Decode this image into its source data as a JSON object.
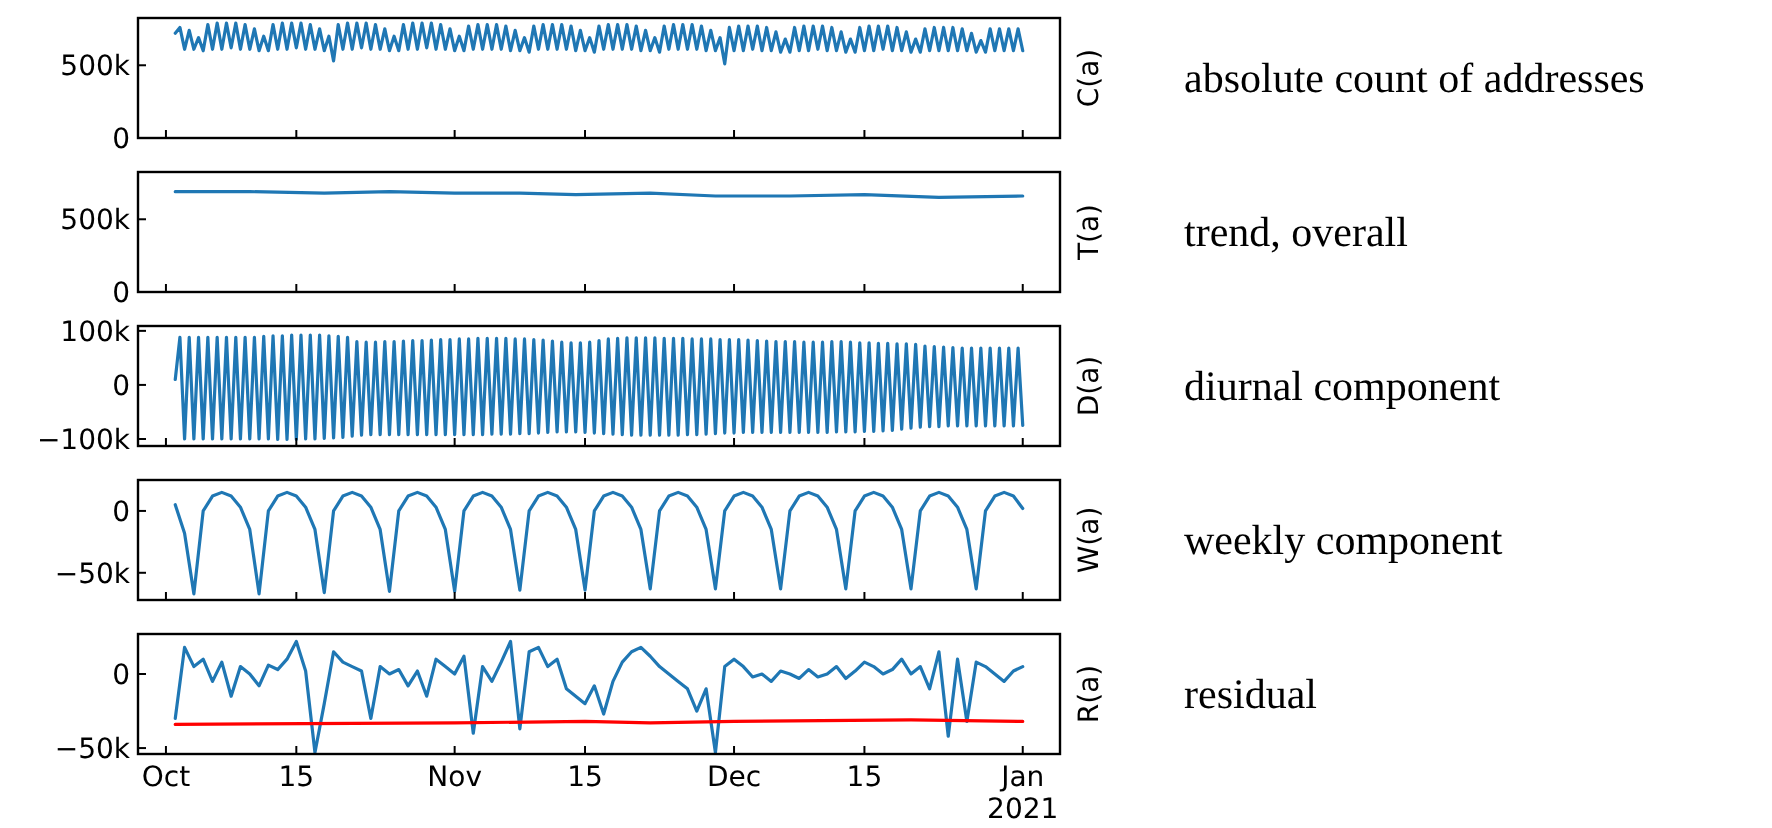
{
  "chart_data": [
    {
      "type": "line",
      "ylabel": "C(a)",
      "annotations": [
        "absolute count of addresses"
      ],
      "xlim": [
        "2020-09-28",
        "2021-01-05"
      ],
      "ylim": [
        0,
        825000
      ],
      "yticks": [
        {
          "value": 0,
          "label": "0"
        },
        {
          "value": 500000,
          "label": "500k"
        }
      ],
      "xticks": [
        {
          "value": "2020-10-01",
          "label": null
        },
        {
          "value": "2020-10-15",
          "label": null
        },
        {
          "value": "2020-11-01",
          "label": null
        },
        {
          "value": "2020-11-15",
          "label": null
        },
        {
          "value": "2020-12-01",
          "label": null
        },
        {
          "value": "2020-12-15",
          "label": null
        },
        {
          "value": "2021-01-01",
          "label": null
        }
      ],
      "tick_labels": "y",
      "x": [
        "2020-10-02T00:00",
        "2020-10-02T12:00",
        "2020-10-03T00:00",
        "2020-10-03T12:00",
        "2020-10-04T00:00",
        "2020-10-04T12:00",
        "2020-10-05T00:00",
        "2020-10-05T12:00",
        "2020-10-06T00:00",
        "2020-10-06T12:00",
        "2020-10-07T00:00",
        "2020-10-07T12:00",
        "2020-10-08T00:00",
        "2020-10-08T12:00",
        "2020-10-09T00:00",
        "2020-10-09T12:00",
        "2020-10-10T00:00",
        "2020-10-10T12:00",
        "2020-10-11T00:00",
        "2020-10-11T12:00",
        "2020-10-12T00:00",
        "2020-10-12T12:00",
        "2020-10-13T00:00",
        "2020-10-13T12:00",
        "2020-10-14T00:00",
        "2020-10-14T12:00",
        "2020-10-15T00:00",
        "2020-10-15T12:00",
        "2020-10-16T00:00",
        "2020-10-16T12:00",
        "2020-10-17T00:00",
        "2020-10-17T12:00",
        "2020-10-18T00:00",
        "2020-10-18T12:00",
        "2020-10-19T00:00",
        "2020-10-19T12:00",
        "2020-10-20T00:00",
        "2020-10-20T12:00",
        "2020-10-21T00:00",
        "2020-10-21T12:00",
        "2020-10-22T00:00",
        "2020-10-22T12:00",
        "2020-10-23T00:00",
        "2020-10-23T12:00",
        "2020-10-24T00:00",
        "2020-10-24T12:00",
        "2020-10-25T00:00",
        "2020-10-25T12:00",
        "2020-10-26T00:00",
        "2020-10-26T12:00",
        "2020-10-27T00:00",
        "2020-10-27T12:00",
        "2020-10-28T00:00",
        "2020-10-28T12:00",
        "2020-10-29T00:00",
        "2020-10-29T12:00",
        "2020-10-30T00:00",
        "2020-10-30T12:00",
        "2020-10-31T00:00",
        "2020-10-31T12:00",
        "2020-11-01T00:00",
        "2020-11-01T12:00",
        "2020-11-02T00:00",
        "2020-11-02T12:00",
        "2020-11-03T00:00",
        "2020-11-03T12:00",
        "2020-11-04T00:00",
        "2020-11-04T12:00",
        "2020-11-05T00:00",
        "2020-11-05T12:00",
        "2020-11-06T00:00",
        "2020-11-06T12:00",
        "2020-11-07T00:00",
        "2020-11-07T12:00",
        "2020-11-08T00:00",
        "2020-11-08T12:00",
        "2020-11-09T00:00",
        "2020-11-09T12:00",
        "2020-11-10T00:00",
        "2020-11-10T12:00",
        "2020-11-11T00:00",
        "2020-11-11T12:00",
        "2020-11-12T00:00",
        "2020-11-12T12:00",
        "2020-11-13T00:00",
        "2020-11-13T12:00",
        "2020-11-14T00:00",
        "2020-11-14T12:00",
        "2020-11-15T00:00",
        "2020-11-15T12:00",
        "2020-11-16T00:00",
        "2020-11-16T12:00",
        "2020-11-17T00:00",
        "2020-11-17T12:00",
        "2020-11-18T00:00",
        "2020-11-18T12:00",
        "2020-11-19T00:00",
        "2020-11-19T12:00",
        "2020-11-20T00:00",
        "2020-11-20T12:00",
        "2020-11-21T00:00",
        "2020-11-21T12:00",
        "2020-11-22T00:00",
        "2020-11-22T12:00",
        "2020-11-23T00:00",
        "2020-11-23T12:00",
        "2020-11-24T00:00",
        "2020-11-24T12:00",
        "2020-11-25T00:00",
        "2020-11-25T12:00",
        "2020-11-26T00:00",
        "2020-11-26T12:00",
        "2020-11-27T00:00",
        "2020-11-27T12:00",
        "2020-11-28T00:00",
        "2020-11-28T12:00",
        "2020-11-29T00:00",
        "2020-11-29T12:00",
        "2020-11-30T00:00",
        "2020-11-30T12:00",
        "2020-12-01T00:00",
        "2020-12-01T12:00",
        "2020-12-02T00:00",
        "2020-12-02T12:00",
        "2020-12-03T00:00",
        "2020-12-03T12:00",
        "2020-12-04T00:00",
        "2020-12-04T12:00",
        "2020-12-05T00:00",
        "2020-12-05T12:00",
        "2020-12-06T00:00",
        "2020-12-06T12:00",
        "2020-12-07T00:00",
        "2020-12-07T12:00",
        "2020-12-08T00:00",
        "2020-12-08T12:00",
        "2020-12-09T00:00",
        "2020-12-09T12:00",
        "2020-12-10T00:00",
        "2020-12-10T12:00",
        "2020-12-11T00:00",
        "2020-12-11T12:00",
        "2020-12-12T00:00",
        "2020-12-12T12:00",
        "2020-12-13T00:00",
        "2020-12-13T12:00",
        "2020-12-14T00:00",
        "2020-12-14T12:00",
        "2020-12-15T00:00",
        "2020-12-15T12:00",
        "2020-12-16T00:00",
        "2020-12-16T12:00",
        "2020-12-17T00:00",
        "2020-12-17T12:00",
        "2020-12-18T00:00",
        "2020-12-18T12:00",
        "2020-12-19T00:00",
        "2020-12-19T12:00",
        "2020-12-20T00:00",
        "2020-12-20T12:00",
        "2020-12-21T00:00",
        "2020-12-21T12:00",
        "2020-12-22T00:00",
        "2020-12-22T12:00",
        "2020-12-23T00:00",
        "2020-12-23T12:00",
        "2020-12-24T00:00",
        "2020-12-24T12:00",
        "2020-12-25T00:00",
        "2020-12-25T12:00",
        "2020-12-26T00:00",
        "2020-12-26T12:00",
        "2020-12-27T00:00",
        "2020-12-27T12:00",
        "2020-12-28T00:00",
        "2020-12-28T12:00",
        "2020-12-29T00:00",
        "2020-12-29T12:00",
        "2020-12-30T00:00",
        "2020-12-30T12:00",
        "2020-12-31T00:00",
        "2020-12-31T12:00",
        "2021-01-01T00:00"
      ],
      "series": [
        {
          "color": "#1f77b4",
          "values": [
            720000,
            760000,
            610000,
            740000,
            610000,
            690000,
            600000,
            780000,
            610000,
            790000,
            610000,
            790000,
            620000,
            790000,
            610000,
            780000,
            610000,
            750000,
            600000,
            700000,
            600000,
            780000,
            610000,
            790000,
            610000,
            790000,
            620000,
            790000,
            610000,
            780000,
            610000,
            750000,
            600000,
            700000,
            530000,
            780000,
            610000,
            790000,
            610000,
            790000,
            620000,
            790000,
            610000,
            780000,
            610000,
            750000,
            600000,
            700000,
            600000,
            780000,
            610000,
            790000,
            610000,
            790000,
            620000,
            790000,
            610000,
            780000,
            610000,
            750000,
            600000,
            700000,
            600000,
            770000,
            610000,
            780000,
            610000,
            780000,
            610000,
            780000,
            610000,
            770000,
            600000,
            740000,
            600000,
            690000,
            590000,
            770000,
            610000,
            780000,
            610000,
            780000,
            610000,
            780000,
            610000,
            770000,
            600000,
            740000,
            600000,
            690000,
            590000,
            770000,
            610000,
            780000,
            610000,
            780000,
            610000,
            780000,
            610000,
            770000,
            600000,
            740000,
            600000,
            690000,
            590000,
            770000,
            610000,
            780000,
            610000,
            780000,
            610000,
            780000,
            610000,
            770000,
            600000,
            740000,
            600000,
            690000,
            510000,
            760000,
            600000,
            770000,
            600000,
            770000,
            610000,
            770000,
            600000,
            760000,
            600000,
            730000,
            590000,
            680000,
            590000,
            760000,
            600000,
            770000,
            600000,
            770000,
            610000,
            770000,
            600000,
            760000,
            600000,
            730000,
            590000,
            680000,
            590000,
            760000,
            600000,
            770000,
            600000,
            770000,
            610000,
            770000,
            600000,
            760000,
            600000,
            730000,
            590000,
            680000,
            590000,
            750000,
            600000,
            760000,
            600000,
            760000,
            600000,
            760000,
            600000,
            750000,
            600000,
            720000,
            590000,
            670000,
            590000,
            750000,
            600000,
            750000,
            600000,
            750000,
            600000,
            750000,
            600000
          ]
        }
      ]
    },
    {
      "type": "line",
      "ylabel": "T(a)",
      "annotations": [
        "trend, overall"
      ],
      "xlim": [
        "2020-09-28",
        "2021-01-05"
      ],
      "ylim": [
        0,
        825000
      ],
      "yticks": [
        {
          "value": 0,
          "label": "0"
        },
        {
          "value": 500000,
          "label": "500k"
        }
      ],
      "xticks": [
        {
          "value": "2020-10-01",
          "label": null
        },
        {
          "value": "2020-10-15",
          "label": null
        },
        {
          "value": "2020-11-01",
          "label": null
        },
        {
          "value": "2020-11-15",
          "label": null
        },
        {
          "value": "2020-12-01",
          "label": null
        },
        {
          "value": "2020-12-15",
          "label": null
        },
        {
          "value": "2021-01-01",
          "label": null
        }
      ],
      "tick_labels": "y",
      "x": [
        "2020-10-02",
        "2020-10-10",
        "2020-10-18",
        "2020-10-25",
        "2020-11-01",
        "2020-11-08",
        "2020-11-14",
        "2020-11-22",
        "2020-11-29",
        "2020-12-07",
        "2020-12-15",
        "2020-12-23",
        "2021-01-01"
      ],
      "series": [
        {
          "color": "#1f77b4",
          "values": [
            690000,
            690000,
            680000,
            690000,
            680000,
            680000,
            670000,
            680000,
            660000,
            660000,
            670000,
            650000,
            660000
          ]
        }
      ]
    },
    {
      "type": "line",
      "ylabel": "D(a)",
      "annotations": [
        "diurnal component"
      ],
      "xlim": [
        "2020-09-28",
        "2021-01-05"
      ],
      "ylim": [
        -113000,
        109000
      ],
      "yticks": [
        {
          "value": -100000,
          "label": "−100k"
        },
        {
          "value": 0,
          "label": "0"
        },
        {
          "value": 100000,
          "label": "100k"
        }
      ],
      "xticks": [
        {
          "value": "2020-10-01",
          "label": null
        },
        {
          "value": "2020-10-15",
          "label": null
        },
        {
          "value": "2020-11-01",
          "label": null
        },
        {
          "value": "2020-11-15",
          "label": null
        },
        {
          "value": "2020-12-01",
          "label": null
        },
        {
          "value": "2020-12-15",
          "label": null
        },
        {
          "value": "2021-01-01",
          "label": null
        }
      ],
      "tick_labels": "y",
      "x": [
        "2020-10-02T00:00",
        "2020-10-02T12:00",
        "2020-10-03T00:00",
        "2020-10-03T12:00",
        "2020-10-04T00:00",
        "2020-10-04T12:00",
        "2020-10-05T00:00",
        "2020-10-05T12:00",
        "2020-10-06T00:00",
        "2020-10-06T12:00",
        "2020-10-07T00:00",
        "2020-10-07T12:00",
        "2020-10-08T00:00",
        "2020-10-08T12:00",
        "2020-10-09T00:00",
        "2020-10-09T12:00",
        "2020-10-10T00:00",
        "2020-10-10T12:00",
        "2020-10-11T00:00",
        "2020-10-11T12:00",
        "2020-10-12T00:00",
        "2020-10-12T12:00",
        "2020-10-13T00:00",
        "2020-10-13T12:00",
        "2020-10-14T00:00",
        "2020-10-14T12:00",
        "2020-10-15T00:00",
        "2020-10-15T12:00",
        "2020-10-16T00:00",
        "2020-10-16T12:00",
        "2020-10-17T00:00",
        "2020-10-17T12:00",
        "2020-10-18T00:00",
        "2020-10-18T12:00",
        "2020-10-19T00:00",
        "2020-10-19T12:00",
        "2020-10-20T00:00",
        "2020-10-20T12:00",
        "2020-10-21T00:00",
        "2020-10-21T12:00",
        "2020-10-22T00:00",
        "2020-10-22T12:00",
        "2020-10-23T00:00",
        "2020-10-23T12:00",
        "2020-10-24T00:00",
        "2020-10-24T12:00",
        "2020-10-25T00:00",
        "2020-10-25T12:00",
        "2020-10-26T00:00",
        "2020-10-26T12:00",
        "2020-10-27T00:00",
        "2020-10-27T12:00",
        "2020-10-28T00:00",
        "2020-10-28T12:00",
        "2020-10-29T00:00",
        "2020-10-29T12:00",
        "2020-10-30T00:00",
        "2020-10-30T12:00",
        "2020-10-31T00:00",
        "2020-10-31T12:00",
        "2020-11-01T00:00",
        "2020-11-01T12:00",
        "2020-11-02T00:00",
        "2020-11-02T12:00",
        "2020-11-03T00:00",
        "2020-11-03T12:00",
        "2020-11-04T00:00",
        "2020-11-04T12:00",
        "2020-11-05T00:00",
        "2020-11-05T12:00",
        "2020-11-06T00:00",
        "2020-11-06T12:00",
        "2020-11-07T00:00",
        "2020-11-07T12:00",
        "2020-11-08T00:00",
        "2020-11-08T12:00",
        "2020-11-09T00:00",
        "2020-11-09T12:00",
        "2020-11-10T00:00",
        "2020-11-10T12:00",
        "2020-11-11T00:00",
        "2020-11-11T12:00",
        "2020-11-12T00:00",
        "2020-11-12T12:00",
        "2020-11-13T00:00",
        "2020-11-13T12:00",
        "2020-11-14T00:00",
        "2020-11-14T12:00",
        "2020-11-15T00:00",
        "2020-11-15T12:00",
        "2020-11-16T00:00",
        "2020-11-16T12:00",
        "2020-11-17T00:00",
        "2020-11-17T12:00",
        "2020-11-18T00:00",
        "2020-11-18T12:00",
        "2020-11-19T00:00",
        "2020-11-19T12:00",
        "2020-11-20T00:00",
        "2020-11-20T12:00",
        "2020-11-21T00:00",
        "2020-11-21T12:00",
        "2020-11-22T00:00",
        "2020-11-22T12:00",
        "2020-11-23T00:00",
        "2020-11-23T12:00",
        "2020-11-24T00:00",
        "2020-11-24T12:00",
        "2020-11-25T00:00",
        "2020-11-25T12:00",
        "2020-11-26T00:00",
        "2020-11-26T12:00",
        "2020-11-27T00:00",
        "2020-11-27T12:00",
        "2020-11-28T00:00",
        "2020-11-28T12:00",
        "2020-11-29T00:00",
        "2020-11-29T12:00",
        "2020-11-30T00:00",
        "2020-11-30T12:00",
        "2020-12-01T00:00",
        "2020-12-01T12:00",
        "2020-12-02T00:00",
        "2020-12-02T12:00",
        "2020-12-03T00:00",
        "2020-12-03T12:00",
        "2020-12-04T00:00",
        "2020-12-04T12:00",
        "2020-12-05T00:00",
        "2020-12-05T12:00",
        "2020-12-06T00:00",
        "2020-12-06T12:00",
        "2020-12-07T00:00",
        "2020-12-07T12:00",
        "2020-12-08T00:00",
        "2020-12-08T12:00",
        "2020-12-09T00:00",
        "2020-12-09T12:00",
        "2020-12-10T00:00",
        "2020-12-10T12:00",
        "2020-12-11T00:00",
        "2020-12-11T12:00",
        "2020-12-12T00:00",
        "2020-12-12T12:00",
        "2020-12-13T00:00",
        "2020-12-13T12:00",
        "2020-12-14T00:00",
        "2020-12-14T12:00",
        "2020-12-15T00:00",
        "2020-12-15T12:00",
        "2020-12-16T00:00",
        "2020-12-16T12:00",
        "2020-12-17T00:00",
        "2020-12-17T12:00",
        "2020-12-18T00:00",
        "2020-12-18T12:00",
        "2020-12-19T00:00",
        "2020-12-19T12:00",
        "2020-12-20T00:00",
        "2020-12-20T12:00",
        "2020-12-21T00:00",
        "2020-12-21T12:00",
        "2020-12-22T00:00",
        "2020-12-22T12:00",
        "2020-12-23T00:00",
        "2020-12-23T12:00",
        "2020-12-24T00:00",
        "2020-12-24T12:00",
        "2020-12-25T00:00",
        "2020-12-25T12:00",
        "2020-12-26T00:00",
        "2020-12-26T12:00",
        "2020-12-27T00:00",
        "2020-12-27T12:00",
        "2020-12-28T00:00",
        "2020-12-28T12:00",
        "2020-12-29T00:00",
        "2020-12-29T12:00",
        "2020-12-30T00:00",
        "2020-12-30T12:00",
        "2020-12-31T00:00",
        "2020-12-31T12:00",
        "2021-01-01T00:00"
      ],
      "series": [
        {
          "color": "#1f77b4",
          "values": [
            10000,
            88000,
            -100000,
            88000,
            -100000,
            88000,
            -100000,
            88000,
            -100000,
            88000,
            -100000,
            88000,
            -100000,
            88000,
            -100000,
            88000,
            -100000,
            88000,
            -100000,
            90000,
            -100000,
            91000,
            -101000,
            91000,
            -101000,
            92000,
            -101000,
            92000,
            -100000,
            92000,
            -100000,
            92000,
            -99000,
            91000,
            -98000,
            90000,
            -97000,
            88000,
            -95000,
            80000,
            -93000,
            79000,
            -92000,
            79000,
            -92000,
            80000,
            -92000,
            80000,
            -92000,
            81000,
            -92000,
            82000,
            -92000,
            82000,
            -92000,
            83000,
            -92000,
            84000,
            -92000,
            84000,
            -92000,
            85000,
            -92000,
            85000,
            -92000,
            86000,
            -92000,
            86000,
            -91000,
            86000,
            -91000,
            86000,
            -91000,
            85000,
            -90000,
            85000,
            -90000,
            84000,
            -89000,
            83000,
            -88000,
            81000,
            -87000,
            79000,
            -87000,
            78000,
            -87000,
            78000,
            -88000,
            79000,
            -89000,
            82000,
            -90000,
            85000,
            -91000,
            86000,
            -92000,
            87000,
            -93000,
            87000,
            -93000,
            87000,
            -93000,
            87000,
            -93000,
            86000,
            -93000,
            86000,
            -93000,
            86000,
            -92000,
            85000,
            -92000,
            85000,
            -91000,
            85000,
            -90000,
            84000,
            -89000,
            84000,
            -89000,
            84000,
            -88000,
            83000,
            -88000,
            82000,
            -88000,
            81000,
            -88000,
            80000,
            -88000,
            80000,
            -88000,
            80000,
            -88000,
            79000,
            -88000,
            79000,
            -88000,
            79000,
            -88000,
            80000,
            -87000,
            80000,
            -87000,
            79000,
            -87000,
            78000,
            -86000,
            78000,
            -86000,
            77000,
            -85000,
            77000,
            -84000,
            76000,
            -82000,
            76000,
            -80000,
            75000,
            -78000,
            72000,
            -77000,
            71000,
            -77000,
            70000,
            -76000,
            69000,
            -76000,
            68000,
            -76000,
            68000,
            -76000,
            68000,
            -76000,
            68000,
            -76000,
            68000,
            -76000,
            68000,
            -76000,
            68000,
            -75000
          ]
        }
      ]
    },
    {
      "type": "line",
      "ylabel": "W(a)",
      "annotations": [
        "weekly component"
      ],
      "xlim": [
        "2020-09-28",
        "2021-01-05"
      ],
      "ylim": [
        -72000,
        25000
      ],
      "yticks": [
        {
          "value": -50000,
          "label": "−50k"
        },
        {
          "value": 0,
          "label": "0"
        }
      ],
      "xticks": [
        {
          "value": "2020-10-01",
          "label": null
        },
        {
          "value": "2020-10-15",
          "label": null
        },
        {
          "value": "2020-11-01",
          "label": null
        },
        {
          "value": "2020-11-15",
          "label": null
        },
        {
          "value": "2020-12-01",
          "label": null
        },
        {
          "value": "2020-12-15",
          "label": null
        },
        {
          "value": "2021-01-01",
          "label": null
        }
      ],
      "tick_labels": "y",
      "x": [
        "2020-10-02",
        "2020-10-03",
        "2020-10-04",
        "2020-10-05",
        "2020-10-06",
        "2020-10-07",
        "2020-10-08",
        "2020-10-09",
        "2020-10-10",
        "2020-10-11",
        "2020-10-12",
        "2020-10-13",
        "2020-10-14",
        "2020-10-15",
        "2020-10-16",
        "2020-10-17",
        "2020-10-18",
        "2020-10-19",
        "2020-10-20",
        "2020-10-21",
        "2020-10-22",
        "2020-10-23",
        "2020-10-24",
        "2020-10-25",
        "2020-10-26",
        "2020-10-27",
        "2020-10-28",
        "2020-10-29",
        "2020-10-30",
        "2020-10-31",
        "2020-11-01",
        "2020-11-02",
        "2020-11-03",
        "2020-11-04",
        "2020-11-05",
        "2020-11-06",
        "2020-11-07",
        "2020-11-08",
        "2020-11-09",
        "2020-11-10",
        "2020-11-11",
        "2020-11-12",
        "2020-11-13",
        "2020-11-14",
        "2020-11-15",
        "2020-11-16",
        "2020-11-17",
        "2020-11-18",
        "2020-11-19",
        "2020-11-20",
        "2020-11-21",
        "2020-11-22",
        "2020-11-23",
        "2020-11-24",
        "2020-11-25",
        "2020-11-26",
        "2020-11-27",
        "2020-11-28",
        "2020-11-29",
        "2020-11-30",
        "2020-12-01",
        "2020-12-02",
        "2020-12-03",
        "2020-12-04",
        "2020-12-05",
        "2020-12-06",
        "2020-12-07",
        "2020-12-08",
        "2020-12-09",
        "2020-12-10",
        "2020-12-11",
        "2020-12-12",
        "2020-12-13",
        "2020-12-14",
        "2020-12-15",
        "2020-12-16",
        "2020-12-17",
        "2020-12-18",
        "2020-12-19",
        "2020-12-20",
        "2020-12-21",
        "2020-12-22",
        "2020-12-23",
        "2020-12-24",
        "2020-12-25",
        "2020-12-26",
        "2020-12-27",
        "2020-12-28",
        "2020-12-29",
        "2020-12-30",
        "2020-12-31",
        "2021-01-01"
      ],
      "series": [
        {
          "color": "#1f77b4",
          "values": [
            5000,
            -18000,
            -67000,
            0,
            12000,
            15000,
            12000,
            3000,
            -15000,
            -67000,
            0,
            12000,
            15000,
            12000,
            3000,
            -15000,
            -66000,
            0,
            12000,
            15000,
            12000,
            3000,
            -15000,
            -65000,
            0,
            12000,
            15000,
            12000,
            3000,
            -15000,
            -65000,
            0,
            12000,
            15000,
            12000,
            3000,
            -15000,
            -64000,
            0,
            12000,
            15000,
            12000,
            3000,
            -15000,
            -64000,
            0,
            12000,
            15000,
            12000,
            3000,
            -15000,
            -63000,
            0,
            12000,
            15000,
            12000,
            3000,
            -15000,
            -63000,
            0,
            12000,
            15000,
            12000,
            3000,
            -15000,
            -63000,
            0,
            12000,
            15000,
            12000,
            3000,
            -15000,
            -63000,
            0,
            12000,
            15000,
            12000,
            3000,
            -15000,
            -63000,
            0,
            12000,
            15000,
            12000,
            3000,
            -15000,
            -63000,
            0,
            12000,
            15000,
            12000,
            2000
          ]
        }
      ]
    },
    {
      "type": "line",
      "ylabel": "R(a)",
      "annotations": [
        "residual"
      ],
      "xlim": [
        "2020-09-28",
        "2021-01-05"
      ],
      "ylim": [
        -54000,
        27000
      ],
      "yticks": [
        {
          "value": -50000,
          "label": "−50k"
        },
        {
          "value": 0,
          "label": "0"
        }
      ],
      "xticks": [
        {
          "value": "2020-10-01",
          "label": "Oct"
        },
        {
          "value": "2020-10-15",
          "label": "15"
        },
        {
          "value": "2020-11-01",
          "label": "Nov"
        },
        {
          "value": "2020-11-15",
          "label": "15"
        },
        {
          "value": "2020-12-01",
          "label": "Dec"
        },
        {
          "value": "2020-12-15",
          "label": "15"
        },
        {
          "value": "2021-01-01",
          "label": "Jan\n2021"
        }
      ],
      "x": [
        "2020-10-02",
        "2020-10-03",
        "2020-10-04",
        "2020-10-05",
        "2020-10-06",
        "2020-10-07",
        "2020-10-08",
        "2020-10-09",
        "2020-10-10",
        "2020-10-11",
        "2020-10-12",
        "2020-10-13",
        "2020-10-14",
        "2020-10-15",
        "2020-10-16",
        "2020-10-17",
        "2020-10-18",
        "2020-10-19",
        "2020-10-20",
        "2020-10-21",
        "2020-10-22",
        "2020-10-23",
        "2020-10-24",
        "2020-10-25",
        "2020-10-26",
        "2020-10-27",
        "2020-10-28",
        "2020-10-29",
        "2020-10-30",
        "2020-10-31",
        "2020-11-01",
        "2020-11-02",
        "2020-11-03",
        "2020-11-04",
        "2020-11-05",
        "2020-11-06",
        "2020-11-07",
        "2020-11-08",
        "2020-11-09",
        "2020-11-10",
        "2020-11-11",
        "2020-11-12",
        "2020-11-13",
        "2020-11-14",
        "2020-11-15",
        "2020-11-16",
        "2020-11-17",
        "2020-11-18",
        "2020-11-19",
        "2020-11-20",
        "2020-11-21",
        "2020-11-22",
        "2020-11-23",
        "2020-11-24",
        "2020-11-25",
        "2020-11-26",
        "2020-11-27",
        "2020-11-28",
        "2020-11-29",
        "2020-11-30",
        "2020-12-01",
        "2020-12-02",
        "2020-12-03",
        "2020-12-04",
        "2020-12-05",
        "2020-12-06",
        "2020-12-07",
        "2020-12-08",
        "2020-12-09",
        "2020-12-10",
        "2020-12-11",
        "2020-12-12",
        "2020-12-13",
        "2020-12-14",
        "2020-12-15",
        "2020-12-16",
        "2020-12-17",
        "2020-12-18",
        "2020-12-19",
        "2020-12-20",
        "2020-12-21",
        "2020-12-22",
        "2020-12-23",
        "2020-12-24",
        "2020-12-25",
        "2020-12-26",
        "2020-12-27",
        "2020-12-28",
        "2020-12-29",
        "2020-12-30",
        "2020-12-31",
        "2021-01-01"
      ],
      "series": [
        {
          "color": "#1f77b4",
          "values": [
            -30000,
            18000,
            5000,
            10000,
            -5000,
            8000,
            -15000,
            5000,
            0,
            -8000,
            6000,
            3000,
            10000,
            22000,
            2000,
            -53000,
            -20000,
            15000,
            8000,
            5000,
            2000,
            -30000,
            5000,
            0,
            3000,
            -8000,
            2000,
            -15000,
            10000,
            5000,
            0,
            12000,
            -40000,
            5000,
            -5000,
            8000,
            22000,
            -37000,
            15000,
            18000,
            5000,
            10000,
            -10000,
            -15000,
            -20000,
            -8000,
            -27000,
            -5000,
            8000,
            15000,
            18000,
            12000,
            5000,
            0,
            -5000,
            -10000,
            -25000,
            -10000,
            -53000,
            5000,
            10000,
            5000,
            -2000,
            0,
            -5000,
            2000,
            0,
            -3000,
            3000,
            -2000,
            0,
            5000,
            -3000,
            2000,
            8000,
            5000,
            0,
            3000,
            10000,
            0,
            5000,
            -10000,
            15000,
            -42000,
            10000,
            -32000,
            8000,
            5000,
            0,
            -5000,
            2000,
            5000
          ]
        },
        {
          "color": "#ff0000",
          "x": [
            "2020-10-02",
            "2020-11-01",
            "2020-11-15",
            "2020-11-22",
            "2020-12-01",
            "2020-12-20",
            "2021-01-01"
          ],
          "values": [
            -34000,
            -33000,
            -32000,
            -33000,
            -32000,
            -31000,
            -32000
          ]
        }
      ]
    }
  ]
}
